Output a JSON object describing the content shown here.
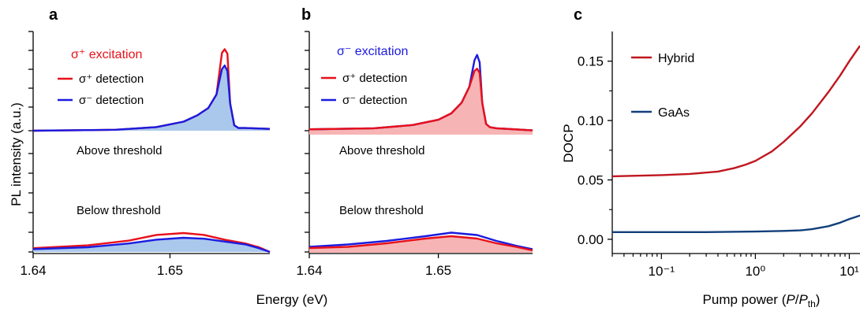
{
  "panels": {
    "a": {
      "letter": "a",
      "excitation": "σ⁺ excitation",
      "excitation_color": "#e8101a",
      "legend": [
        {
          "label": "σ⁺ detection",
          "color": "#e8101a"
        },
        {
          "label": "σ⁻ detection",
          "color": "#1b1be0"
        }
      ],
      "above_label": "Above threshold",
      "below_label": "Below threshold"
    },
    "b": {
      "letter": "b",
      "excitation": "σ⁻ excitation",
      "excitation_color": "#1b1be0",
      "legend": [
        {
          "label": "σ⁺ detection",
          "color": "#e8101a"
        },
        {
          "label": "σ⁻ detection",
          "color": "#1b1be0"
        }
      ],
      "above_label": "Above threshold",
      "below_label": "Below threshold"
    },
    "c": {
      "letter": "c"
    }
  },
  "shared": {
    "ylabel": "PL intensity (a.u.)",
    "xlabel": "Energy (eV)"
  },
  "chart_data": [
    {
      "id": "a",
      "type": "line",
      "title": "σ⁺ excitation",
      "xlabel": "Energy (eV)",
      "ylabel": "PL intensity (a.u.)",
      "xlim": [
        1.64,
        1.6573
      ],
      "xticks": [
        "1.64",
        "1.65"
      ],
      "grid": false,
      "legend_position": "top-left",
      "fill_color": "#a9c8ec",
      "series": [
        {
          "name": "σ⁺ detection",
          "color": "#e8101a",
          "above": {
            "x": [
              1.64,
              1.646,
              1.649,
              1.651,
              1.652,
              1.6528,
              1.6534,
              1.6538,
              1.654,
              1.6542,
              1.6544,
              1.6547,
              1.655,
              1.6555,
              1.6573
            ],
            "y": [
              0.0,
              0.01,
              0.04,
              0.1,
              0.17,
              0.25,
              0.4,
              0.86,
              0.9,
              0.85,
              0.3,
              0.06,
              0.03,
              0.03,
              0.02
            ]
          },
          "below": {
            "x": [
              1.64,
              1.644,
              1.647,
              1.649,
              1.651,
              1.6525,
              1.654,
              1.6555,
              1.6565,
              1.6573
            ],
            "y": [
              0.04,
              0.07,
              0.12,
              0.18,
              0.2,
              0.18,
              0.13,
              0.09,
              0.05,
              0.0
            ]
          }
        },
        {
          "name": "σ⁻ detection",
          "color": "#1b1be0",
          "above": {
            "x": [
              1.64,
              1.646,
              1.649,
              1.651,
              1.652,
              1.6528,
              1.6534,
              1.6538,
              1.654,
              1.6542,
              1.6544,
              1.6547,
              1.655,
              1.6555,
              1.6573
            ],
            "y": [
              0.0,
              0.01,
              0.04,
              0.1,
              0.17,
              0.25,
              0.4,
              0.68,
              0.72,
              0.66,
              0.3,
              0.06,
              0.03,
              0.03,
              0.02
            ]
          },
          "below": {
            "x": [
              1.64,
              1.644,
              1.647,
              1.649,
              1.651,
              1.6525,
              1.654,
              1.6555,
              1.6565,
              1.6573
            ],
            "y": [
              0.03,
              0.05,
              0.09,
              0.13,
              0.15,
              0.14,
              0.11,
              0.08,
              0.04,
              0.0
            ]
          }
        }
      ]
    },
    {
      "id": "b",
      "type": "line",
      "title": "σ⁻ excitation",
      "xlabel": "Energy (eV)",
      "ylabel": "PL intensity (a.u.)",
      "xlim": [
        1.64,
        1.6573
      ],
      "xticks": [
        "1.64",
        "1.65"
      ],
      "grid": false,
      "legend_position": "top-left",
      "fill_color": "#f7b4b4",
      "series": [
        {
          "name": "σ⁺ detection",
          "color": "#e8101a",
          "above": {
            "x": [
              1.64,
              1.645,
              1.648,
              1.65,
              1.651,
              1.6518,
              1.6524,
              1.6528,
              1.653,
              1.6532,
              1.6534,
              1.6537,
              1.654,
              1.6545,
              1.6573
            ],
            "y": [
              0.05,
              0.06,
              0.09,
              0.14,
              0.2,
              0.3,
              0.45,
              0.6,
              0.62,
              0.58,
              0.3,
              0.1,
              0.07,
              0.06,
              0.04
            ]
          },
          "below": {
            "x": [
              1.64,
              1.643,
              1.646,
              1.649,
              1.651,
              1.653,
              1.6545,
              1.656,
              1.6573
            ],
            "y": [
              0.04,
              0.05,
              0.08,
              0.12,
              0.14,
              0.12,
              0.08,
              0.05,
              0.02
            ]
          }
        },
        {
          "name": "σ⁻ detection",
          "color": "#1b1be0",
          "above": {
            "x": [
              1.64,
              1.645,
              1.648,
              1.65,
              1.651,
              1.6518,
              1.6524,
              1.6528,
              1.653,
              1.6532,
              1.6534,
              1.6537,
              1.654,
              1.6545,
              1.6573
            ],
            "y": [
              0.05,
              0.06,
              0.09,
              0.14,
              0.2,
              0.3,
              0.45,
              0.7,
              0.75,
              0.68,
              0.3,
              0.1,
              0.07,
              0.06,
              0.04
            ]
          },
          "below": {
            "x": [
              1.64,
              1.643,
              1.646,
              1.649,
              1.651,
              1.653,
              1.6545,
              1.656,
              1.6573
            ],
            "y": [
              0.05,
              0.07,
              0.1,
              0.14,
              0.17,
              0.15,
              0.1,
              0.06,
              0.03
            ]
          }
        }
      ]
    },
    {
      "id": "c",
      "type": "line",
      "x_scale": "log",
      "xlabel": "Pump power (P/Pth)",
      "ylabel": "DOCP",
      "xlim": [
        0.03,
        13
      ],
      "ylim": [
        -0.012,
        0.175
      ],
      "xticks": [
        "10⁻¹",
        "10⁰",
        "10¹"
      ],
      "yticks": [
        "0.00",
        "0.05",
        "0.10",
        "0.15"
      ],
      "grid": false,
      "legend_position": "top-left",
      "series": [
        {
          "name": "Hybrid",
          "color": "#c0161f",
          "x": [
            0.03,
            0.1,
            0.2,
            0.4,
            0.6,
            0.8,
            1.0,
            1.5,
            2,
            3,
            4,
            6,
            8,
            10,
            13
          ],
          "y": [
            0.053,
            0.054,
            0.055,
            0.057,
            0.06,
            0.063,
            0.066,
            0.074,
            0.082,
            0.095,
            0.106,
            0.124,
            0.138,
            0.15,
            0.163
          ]
        },
        {
          "name": "GaAs",
          "color": "#123f7a",
          "x": [
            0.03,
            0.1,
            0.3,
            1.0,
            2.0,
            3.0,
            4.0,
            6.0,
            8.0,
            10.0,
            13.0
          ],
          "y": [
            0.006,
            0.006,
            0.006,
            0.0065,
            0.007,
            0.0075,
            0.0085,
            0.011,
            0.014,
            0.017,
            0.02
          ]
        }
      ]
    }
  ]
}
